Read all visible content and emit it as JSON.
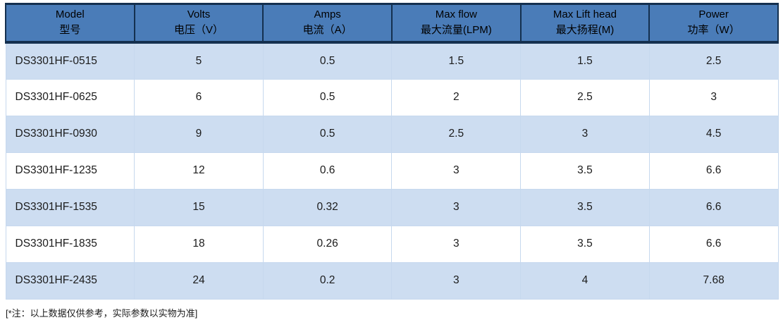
{
  "table": {
    "columns": [
      {
        "key": "model",
        "en": "Model",
        "zh": "型号"
      },
      {
        "key": "volts",
        "en": "Volts",
        "zh": "电压（V）"
      },
      {
        "key": "amps",
        "en": "Amps",
        "zh": "电流（A）"
      },
      {
        "key": "max_flow",
        "en": "Max flow",
        "zh": "最大流量(LPM)"
      },
      {
        "key": "max_lift_head",
        "en": "Max Lift head",
        "zh": "最大扬程(M)"
      },
      {
        "key": "power",
        "en": "Power",
        "zh": "功率（W）"
      }
    ],
    "rows": [
      [
        "DS3301HF-0515",
        "5",
        "0.5",
        "1.5",
        "1.5",
        "2.5"
      ],
      [
        "DS3301HF-0625",
        "6",
        "0.5",
        "2",
        "2.5",
        "3"
      ],
      [
        "DS3301HF-0930",
        "9",
        "0.5",
        "2.5",
        "3",
        "4.5"
      ],
      [
        "DS3301HF-1235",
        "12",
        "0.6",
        "3",
        "3.5",
        "6.6"
      ],
      [
        "DS3301HF-1535",
        "15",
        "0.32",
        "3",
        "3.5",
        "6.6"
      ],
      [
        "DS3301HF-1835",
        "18",
        "0.26",
        "3",
        "3.5",
        "6.6"
      ],
      [
        "DS3301HF-2435",
        "24",
        "0.2",
        "3",
        "4",
        "7.68"
      ]
    ]
  },
  "footnote": "[*注：以上数据仅供参考，实际参数以实物为准]",
  "colors": {
    "header_bg": "#4a7cb8",
    "header_border": "#14304f",
    "row_alt_bg": "#cdddf1",
    "row_bg": "#ffffff",
    "grid_line": "#c6d8ee",
    "text_color": "#1b1b1b"
  }
}
